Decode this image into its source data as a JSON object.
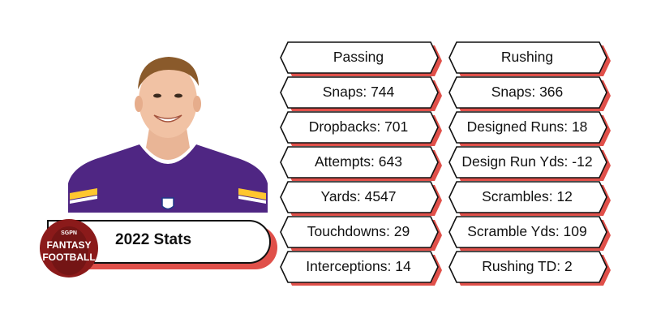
{
  "banner": {
    "title": "2022 Stats",
    "logo": {
      "top": "SGPN",
      "line1": "FANTASY",
      "line2": "FOOTBALL"
    }
  },
  "columns": {
    "passing": {
      "header": "Passing",
      "items": [
        "Snaps: 744",
        "Dropbacks: 701",
        "Attempts: 643",
        "Yards: 4547",
        "Touchdowns: 29",
        "Interceptions: 14"
      ]
    },
    "rushing": {
      "header": "Rushing",
      "items": [
        "Snaps: 366",
        "Designed Runs: 18",
        "Design Run Yds: -12",
        "Scrambles: 12",
        "Scramble Yds: 109",
        "Rushing TD: 2"
      ]
    }
  },
  "colors": {
    "accent_shadow": "#e0504a",
    "jersey_purple": "#4f2683",
    "jersey_gold": "#ffc62f",
    "logo_red": "#8b1a1a"
  },
  "icons": [
    "player-photo",
    "fantasy-football-logo"
  ]
}
